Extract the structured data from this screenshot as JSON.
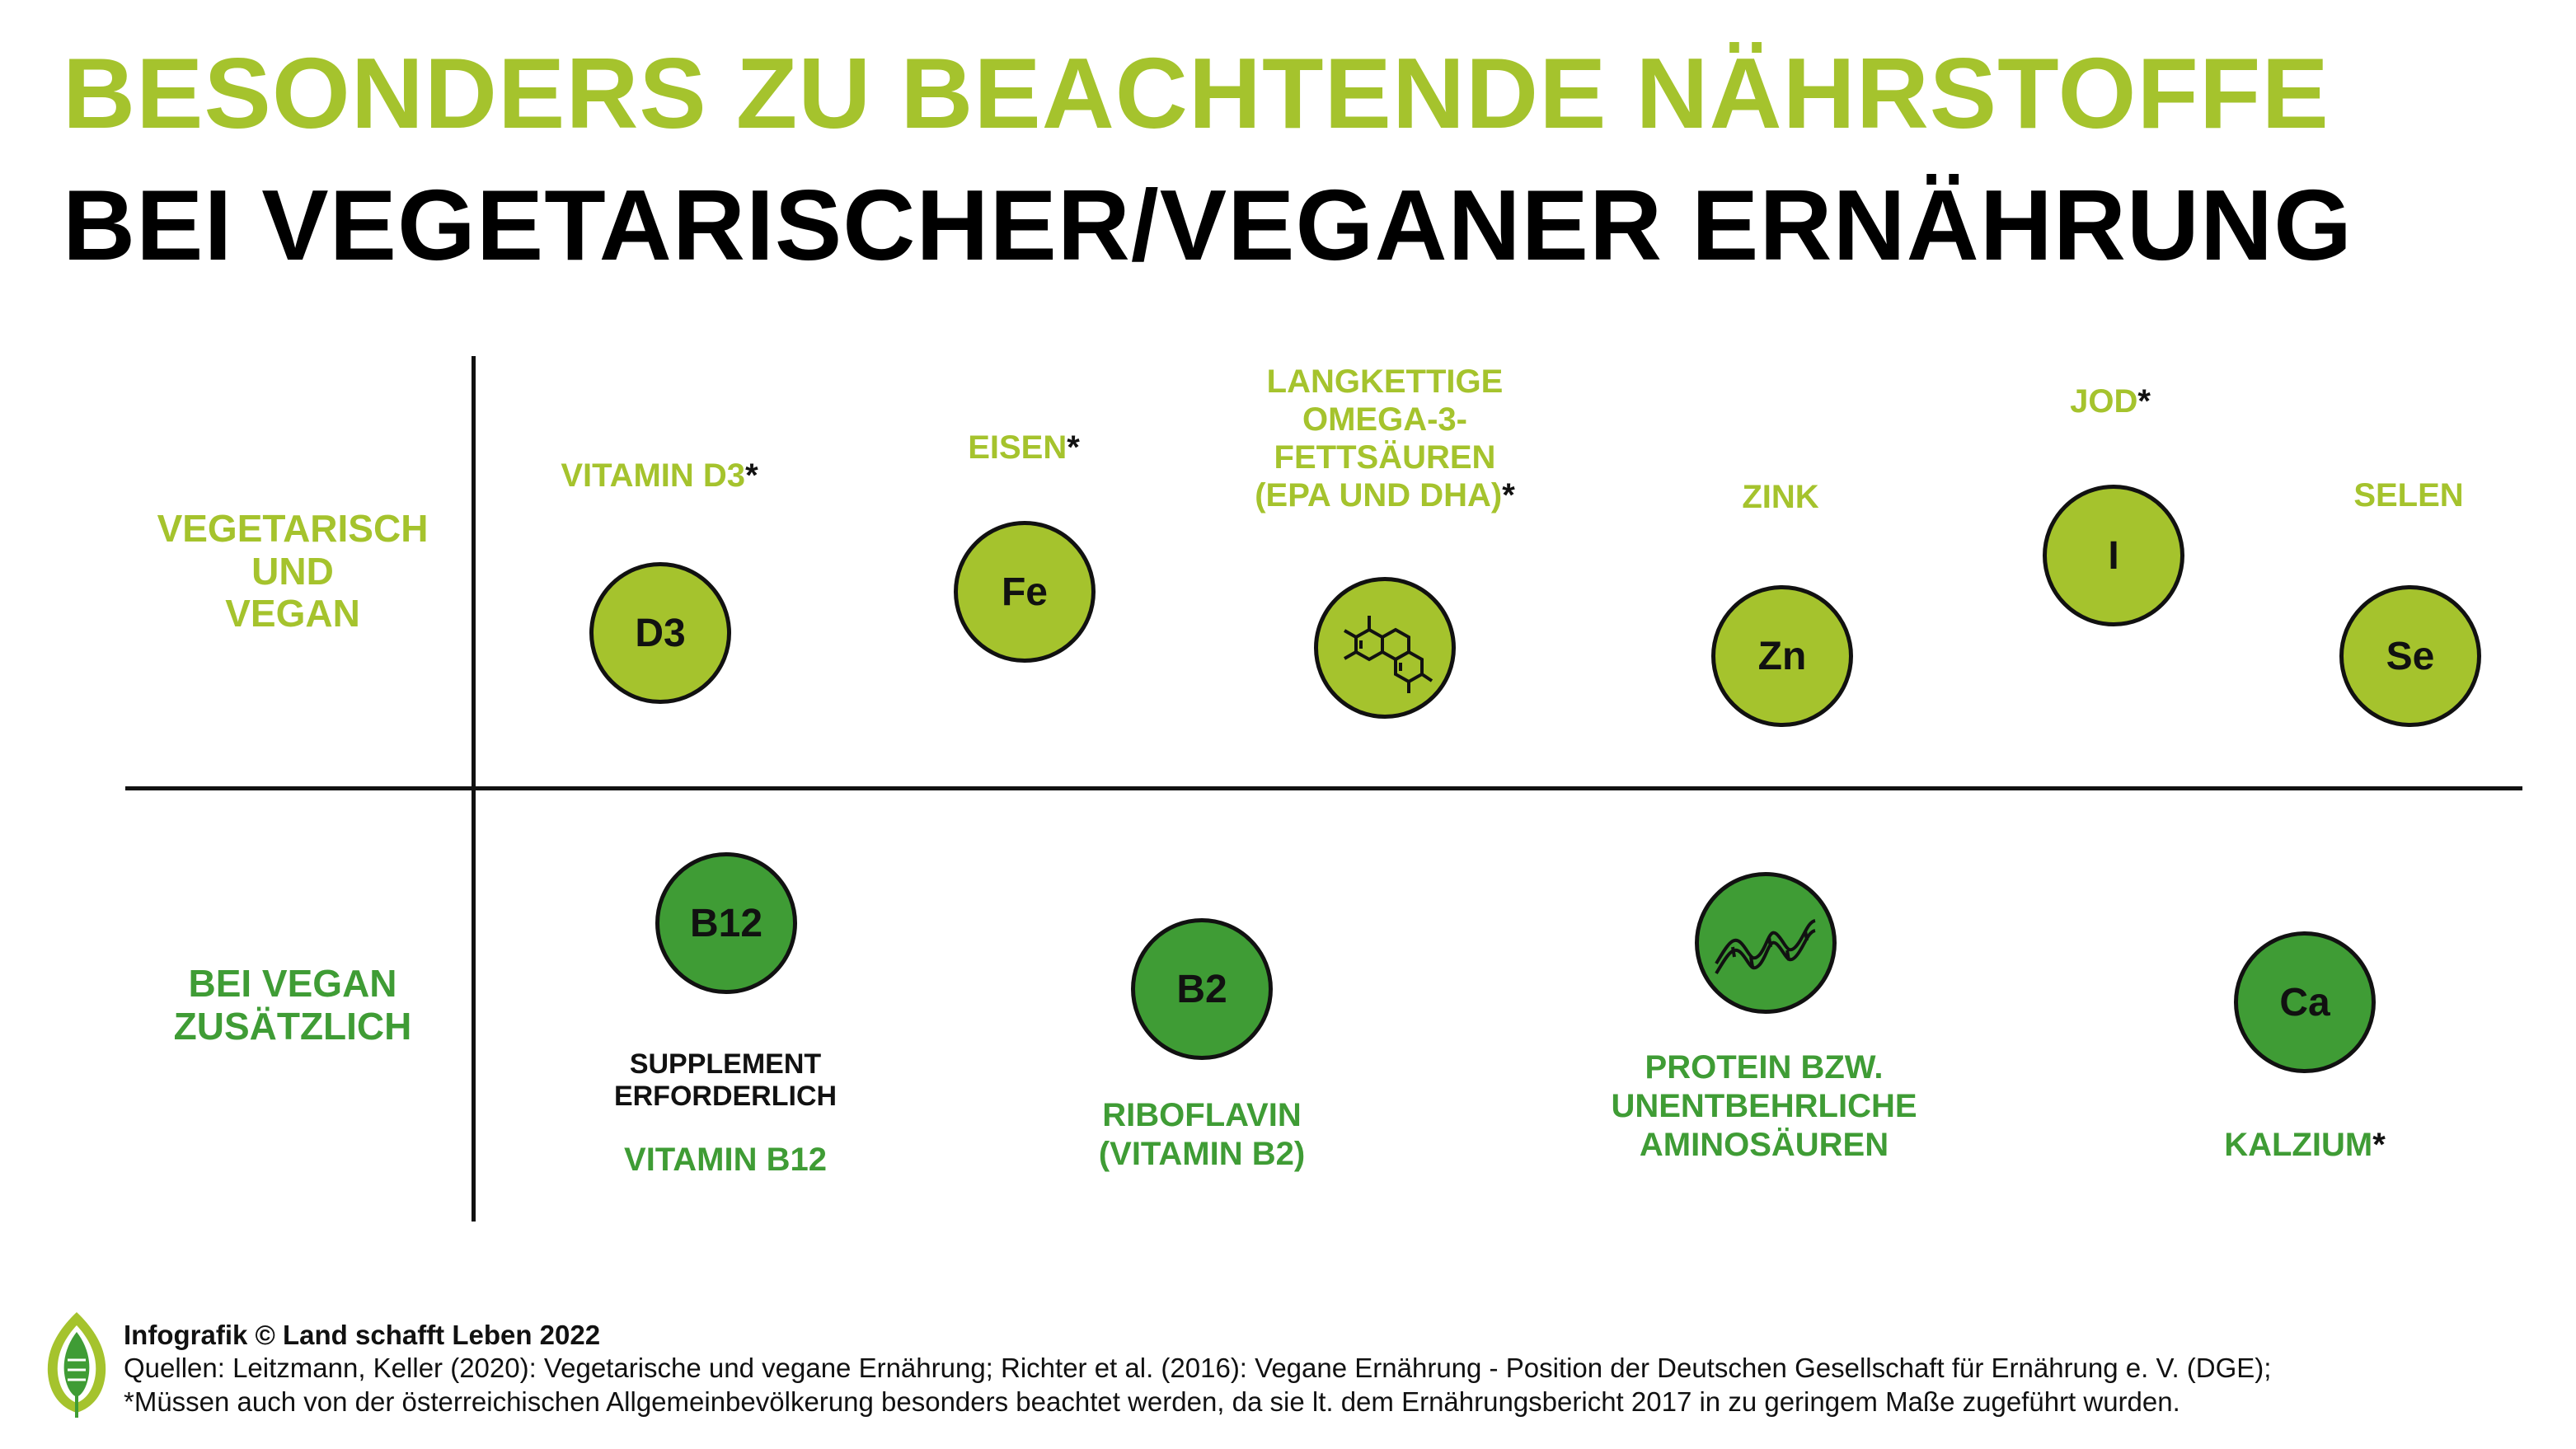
{
  "title": {
    "line1": "BESONDERS ZU BEACHTENDE NÄHRSTOFFE",
    "line2": "BEI VEGETARISCHER/VEGANER ERNÄHRUNG"
  },
  "rows": {
    "vegetarian": "VEGETARISCH\nUND\nVEGAN",
    "vegan": "BEI VEGAN\nZUSÄTZLICH"
  },
  "nutrients_top": [
    {
      "label": "VITAMIN D3",
      "star": "*",
      "symbol": "D3"
    },
    {
      "label": "EISEN",
      "star": "*",
      "symbol": "Fe"
    },
    {
      "label": "LANGKETTIGE\nOMEGA-3-\nFETTSÄUREN\n(EPA UND DHA)",
      "star": "*",
      "symbol": "",
      "icon": "molecule-icon"
    },
    {
      "label": "ZINK",
      "star": "",
      "symbol": "Zn"
    },
    {
      "label": "JOD",
      "star": "*",
      "symbol": "I"
    },
    {
      "label": "SELEN",
      "star": "",
      "symbol": "Se"
    }
  ],
  "nutrients_bottom": [
    {
      "note": "SUPPLEMENT\nERFORDERLICH",
      "label": "VITAMIN B12",
      "star": "",
      "symbol": "B12"
    },
    {
      "label": "RIBOFLAVIN\n(VITAMIN B2)",
      "star": "",
      "symbol": "B2"
    },
    {
      "label": "PROTEIN BZW.\nUNENTBEHRLICHE\nAMINOSÄUREN",
      "star": "",
      "symbol": "",
      "icon": "protein-helix-icon"
    },
    {
      "label": "KALZIUM",
      "star": "*",
      "symbol": "Ca"
    }
  ],
  "colors": {
    "light_green": "#a5c32d",
    "dark_green": "#3f9c35",
    "line": "#111111"
  },
  "footer": {
    "credit": "Infografik © Land schafft Leben 2022",
    "sources": "Quellen: Leitzmann, Keller (2020): Vegetarische und vegane Ernährung; Richter et al. (2016): Vegane Ernährung - Position der Deutschen Gesellschaft für Ernährung e. V. (DGE);",
    "note": "*Müssen auch von der österreichischen Allgemeinbevölkerung besonders beachtet werden, da sie lt. dem Ernährungsbericht 2017 in zu geringem Maße zugeführt wurden."
  }
}
